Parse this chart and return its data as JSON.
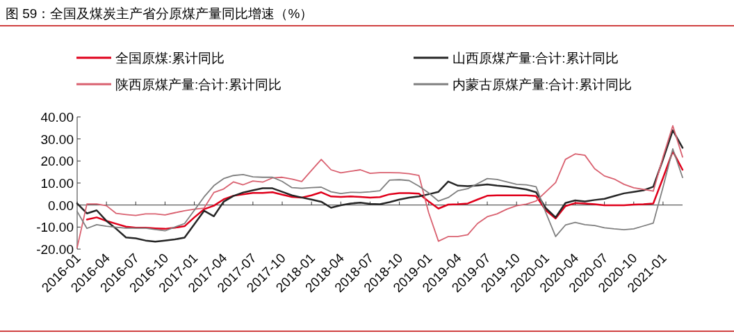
{
  "chart_data": {
    "type": "line",
    "title": "图 59：全国及煤炭主产省分原煤产量同比增速（%）",
    "x": [
      "2016-01",
      "2016-02",
      "2016-03",
      "2016-04",
      "2016-05",
      "2016-06",
      "2016-07",
      "2016-08",
      "2016-09",
      "2016-10",
      "2016-11",
      "2016-12",
      "2017-01",
      "2017-02",
      "2017-03",
      "2017-04",
      "2017-05",
      "2017-06",
      "2017-07",
      "2017-08",
      "2017-09",
      "2017-10",
      "2017-11",
      "2017-12",
      "2018-01",
      "2018-02",
      "2018-03",
      "2018-04",
      "2018-05",
      "2018-06",
      "2018-07",
      "2018-08",
      "2018-09",
      "2018-10",
      "2018-11",
      "2018-12",
      "2019-01",
      "2019-02",
      "2019-03",
      "2019-04",
      "2019-05",
      "2019-06",
      "2019-07",
      "2019-08",
      "2019-09",
      "2019-10",
      "2019-11",
      "2019-12",
      "2020-01",
      "2020-02",
      "2020-03",
      "2020-04",
      "2020-05",
      "2020-06",
      "2020-07",
      "2020-08",
      "2020-09",
      "2020-10",
      "2020-11",
      "2020-12",
      "2021-01",
      "2021-02",
      "2021-03"
    ],
    "series": [
      {
        "name": "全国原煤:累计同比",
        "color": "#e0001b",
        "values": [
          null,
          -6.6,
          -5.6,
          -7.2,
          -8.5,
          -9.8,
          -10.3,
          -10.3,
          -10.6,
          -10.8,
          -10.3,
          -9.6,
          -5.6,
          -1.9,
          -0.3,
          2.6,
          4.2,
          4.9,
          5.5,
          5.5,
          5.8,
          4.7,
          3.7,
          3.4,
          4.4,
          5.8,
          3.9,
          3.7,
          3.9,
          3.7,
          3.4,
          3.6,
          4.9,
          5.4,
          5.4,
          5.2,
          1.6,
          -1.6,
          0.2,
          0.4,
          0.7,
          2.5,
          4.2,
          4.4,
          4.4,
          4.4,
          4.4,
          4.1,
          -2.4,
          -6.1,
          -0.5,
          0.9,
          0.7,
          0.4,
          -0.1,
          -0.1,
          -0.1,
          0.2,
          0.4,
          0.7,
          12.3,
          24.4,
          16.0
        ]
      },
      {
        "name": "山西原煤产量:合计:累计同比",
        "color": "#262626",
        "values": [
          0.7,
          -3.8,
          -2.4,
          -7.2,
          -10.8,
          -14.7,
          -15.1,
          -16.1,
          -16.6,
          -16.1,
          -15.6,
          -14.8,
          -8.7,
          -2.6,
          -5.1,
          1.5,
          4.1,
          5.7,
          6.7,
          7.6,
          7.6,
          6.0,
          4.4,
          3.4,
          2.5,
          1.5,
          -1.2,
          -0.1,
          0.7,
          1.1,
          0.5,
          0.4,
          1.3,
          2.5,
          3.4,
          3.9,
          4.9,
          6.0,
          10.7,
          8.8,
          8.6,
          8.9,
          9.4,
          8.8,
          8.4,
          7.8,
          7.1,
          5.8,
          -1.4,
          -5.6,
          0.9,
          2.1,
          1.6,
          2.3,
          2.8,
          4.1,
          5.3,
          6.0,
          6.7,
          8.3,
          20.7,
          33.9,
          26.0
        ]
      },
      {
        "name": "陕西原煤产量:合计:累计同比",
        "color": "#d9606f",
        "values": [
          -19.3,
          0.5,
          0.5,
          -0.3,
          -3.8,
          -4.3,
          -4.7,
          -4.0,
          -4.0,
          -4.5,
          -3.5,
          -2.6,
          -1.9,
          -1.4,
          5.7,
          7.3,
          10.5,
          9.2,
          10.9,
          10.4,
          12.3,
          12.6,
          11.8,
          10.7,
          15.7,
          20.7,
          16.0,
          14.6,
          15.3,
          16.0,
          14.4,
          14.7,
          14.7,
          14.6,
          14.2,
          13.4,
          -3.5,
          -16.4,
          -14.3,
          -14.3,
          -13.5,
          -8.4,
          -5.3,
          -4.0,
          -1.9,
          -0.3,
          0.4,
          1.8,
          6.0,
          10.2,
          20.7,
          23.2,
          22.6,
          16.5,
          13.2,
          11.8,
          9.4,
          7.8,
          7.1,
          6.3,
          21.8,
          36.0,
          21.8
        ]
      },
      {
        "name": "内蒙古原煤产量:合计:累计同比",
        "color": "#7f7f7f",
        "values": [
          -2.9,
          -10.6,
          -8.9,
          -9.6,
          -10.1,
          -10.5,
          -10.5,
          -10.5,
          -11.1,
          -11.7,
          -10.0,
          -8.4,
          -2.4,
          3.7,
          8.8,
          12.0,
          13.4,
          13.8,
          12.8,
          12.6,
          12.6,
          10.7,
          7.9,
          7.6,
          7.9,
          8.1,
          6.0,
          5.2,
          5.8,
          5.7,
          6.0,
          6.5,
          11.3,
          11.5,
          11.1,
          8.6,
          5.5,
          1.8,
          3.4,
          6.5,
          7.4,
          9.7,
          12.0,
          11.6,
          10.5,
          9.4,
          9.2,
          8.3,
          -3.5,
          -14.3,
          -9.1,
          -7.9,
          -8.9,
          -9.3,
          -10.3,
          -10.8,
          -11.2,
          -10.8,
          -9.5,
          -8.2,
          8.1,
          25.5,
          12.5
        ]
      }
    ],
    "xlim": [
      "2016-01",
      "2021-03"
    ],
    "xticks": [
      "2016-01",
      "2016-04",
      "2016-07",
      "2016-10",
      "2017-01",
      "2017-04",
      "2017-07",
      "2017-10",
      "2018-01",
      "2018-04",
      "2018-07",
      "2018-10",
      "2019-01",
      "2019-04",
      "2019-07",
      "2019-10",
      "2020-01",
      "2020-04",
      "2020-07",
      "2020-10",
      "2021-01"
    ],
    "ylim": [
      -20,
      40
    ],
    "yticks": [
      {
        "value": -20,
        "label": "-20.00"
      },
      {
        "value": -10,
        "label": "-10.00"
      },
      {
        "value": 0,
        "label": "0.00"
      },
      {
        "value": 10,
        "label": "10.00"
      },
      {
        "value": 20,
        "label": "20.00"
      },
      {
        "value": 30,
        "label": "30.00"
      },
      {
        "value": 40,
        "label": "40.00"
      }
    ],
    "legend": "top",
    "line_style": "solid",
    "marker": "none"
  }
}
